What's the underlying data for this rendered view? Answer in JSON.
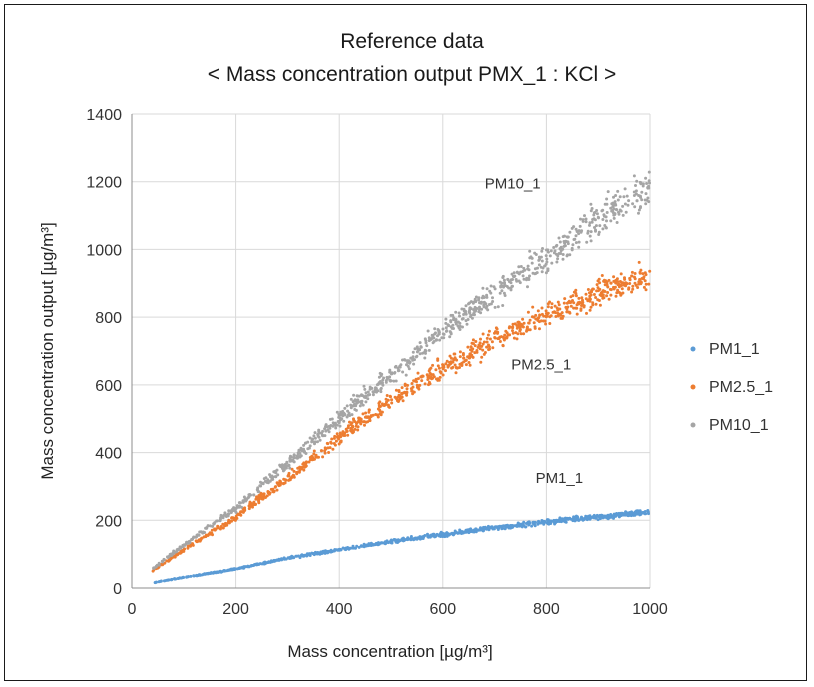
{
  "chart_data": {
    "type": "scatter",
    "title": "Reference data",
    "subtitle": "< Mass concentration output PMX_1 : KCl >",
    "xlabel": "Mass concentration [µg/m³]",
    "ylabel": "Mass concentration output [µg/m³]",
    "xlim": [
      0,
      1000
    ],
    "ylim": [
      0,
      1400
    ],
    "x_ticks": [
      "0",
      "200",
      "400",
      "600",
      "800",
      "1000"
    ],
    "y_ticks": [
      "0",
      "200",
      "400",
      "600",
      "800",
      "1000",
      "1200",
      "1400"
    ],
    "grid": true,
    "legend": "right",
    "colors": {
      "PM1_1": "#5b9bd5",
      "PM2.5_1": "#ed7d31",
      "PM10_1": "#a5a5a5"
    },
    "series": [
      {
        "name": "PM1_1",
        "x": [
          40,
          60,
          80,
          100,
          150,
          200,
          250,
          300,
          350,
          400,
          450,
          500,
          550,
          600,
          650,
          700,
          750,
          800,
          850,
          900,
          950,
          1000
        ],
        "values": [
          15,
          21,
          26,
          31,
          43,
          56,
          72,
          88,
          100,
          113,
          125,
          137,
          148,
          158,
          168,
          178,
          186,
          195,
          203,
          210,
          217,
          224
        ]
      },
      {
        "name": "PM2.5_1",
        "x": [
          40,
          60,
          80,
          100,
          150,
          200,
          250,
          300,
          350,
          400,
          450,
          500,
          550,
          600,
          650,
          700,
          750,
          800,
          850,
          900,
          950,
          1000
        ],
        "values": [
          50,
          72,
          92,
          112,
          160,
          210,
          268,
          323,
          385,
          445,
          500,
          550,
          600,
          650,
          690,
          730,
          770,
          808,
          845,
          875,
          900,
          920
        ]
      },
      {
        "name": "PM10_1",
        "x": [
          40,
          60,
          80,
          100,
          150,
          200,
          250,
          300,
          350,
          400,
          450,
          500,
          550,
          600,
          650,
          700,
          750,
          800,
          850,
          900,
          950,
          1000
        ],
        "values": [
          55,
          80,
          103,
          125,
          180,
          235,
          303,
          368,
          433,
          500,
          568,
          630,
          690,
          755,
          815,
          870,
          920,
          975,
          1035,
          1090,
          1140,
          1180
        ]
      }
    ],
    "annotations": [
      {
        "text": "PM10_1",
        "x": 735,
        "y": 1180
      },
      {
        "text": "PM2.5_1",
        "x": 790,
        "y": 645
      },
      {
        "text": "PM1_1",
        "x": 825,
        "y": 310
      }
    ]
  }
}
